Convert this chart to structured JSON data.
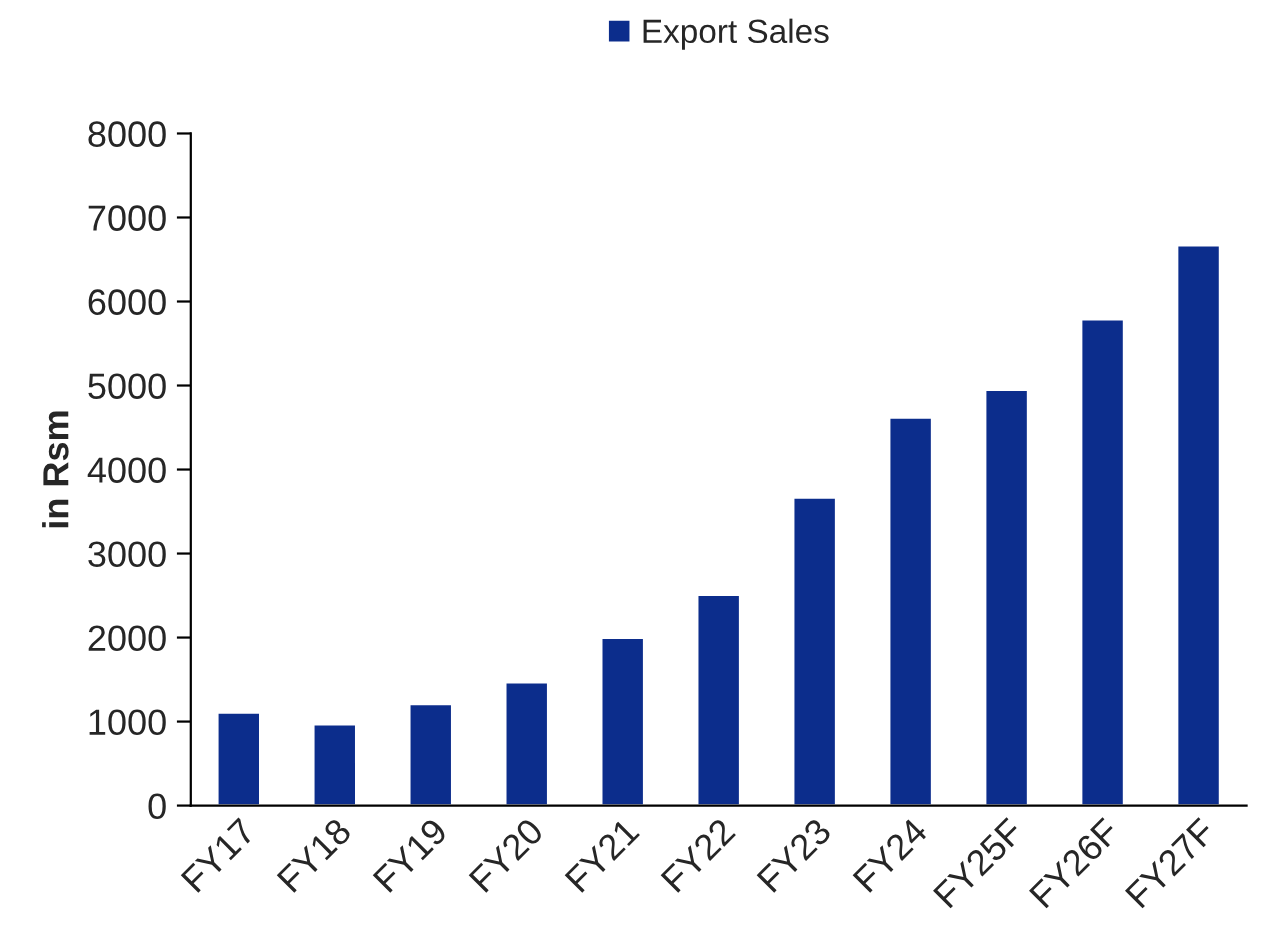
{
  "chart_data": {
    "type": "bar",
    "ylabel": "in Rsm",
    "categories": [
      "FY17",
      "FY18",
      "FY19",
      "FY20",
      "FY21",
      "FY22",
      "FY23",
      "FY24",
      "FY25F",
      "FY26F",
      "FY27F"
    ],
    "series": [
      {
        "name": "Export Sales",
        "color": "#0c2d8c",
        "values": [
          1110,
          970,
          1210,
          1470,
          2000,
          2510,
          3670,
          4620,
          4950,
          5790,
          6670
        ]
      }
    ],
    "ylim": [
      0,
      8000
    ],
    "yticks": [
      0,
      1000,
      2000,
      3000,
      4000,
      5000,
      6000,
      7000,
      8000
    ],
    "grid": false,
    "legend": "top"
  }
}
